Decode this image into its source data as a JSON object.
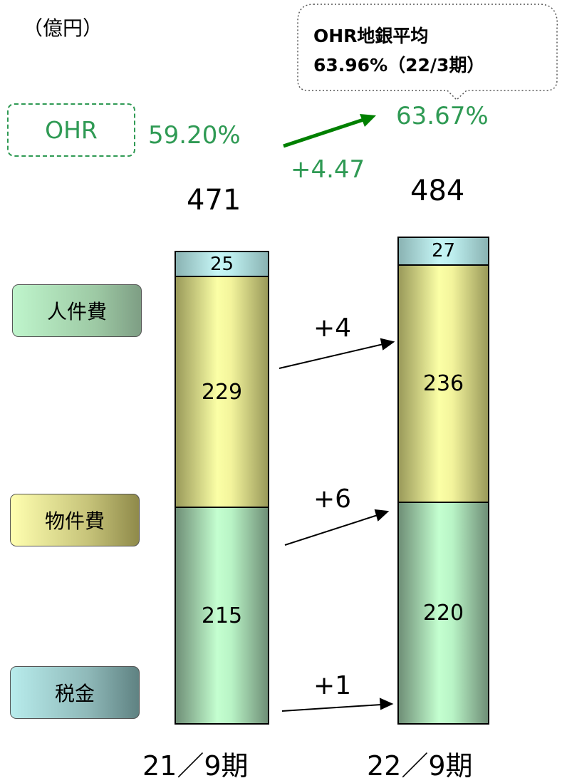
{
  "unit_label": "（億円）",
  "callout": {
    "line1": "OHR地銀平均",
    "line2": "63.96%（22/3期）"
  },
  "ohr": {
    "label": "OHR",
    "from": "59.20%",
    "to": "63.67%",
    "change": "+4.47"
  },
  "categories": [
    {
      "name": "人件費"
    },
    {
      "name": "物件費"
    },
    {
      "name": "税金"
    }
  ],
  "chart_data": {
    "type": "bar",
    "stacked": true,
    "unit": "億円",
    "categories": [
      "21／9期",
      "22／9期"
    ],
    "totals": [
      "471",
      "484"
    ],
    "series": [
      {
        "name": "人件費",
        "values": [
          215,
          220
        ],
        "change": "+4"
      },
      {
        "name": "物件費",
        "values": [
          229,
          236
        ],
        "change": "+6"
      },
      {
        "name": "税金",
        "values": [
          25,
          27
        ],
        "change": "+1"
      }
    ],
    "colors": {
      "personnel": "#c4ffd0",
      "property": "#fbffa6",
      "tax": "#c6f6f6",
      "ohr": "#2f9a54"
    }
  }
}
